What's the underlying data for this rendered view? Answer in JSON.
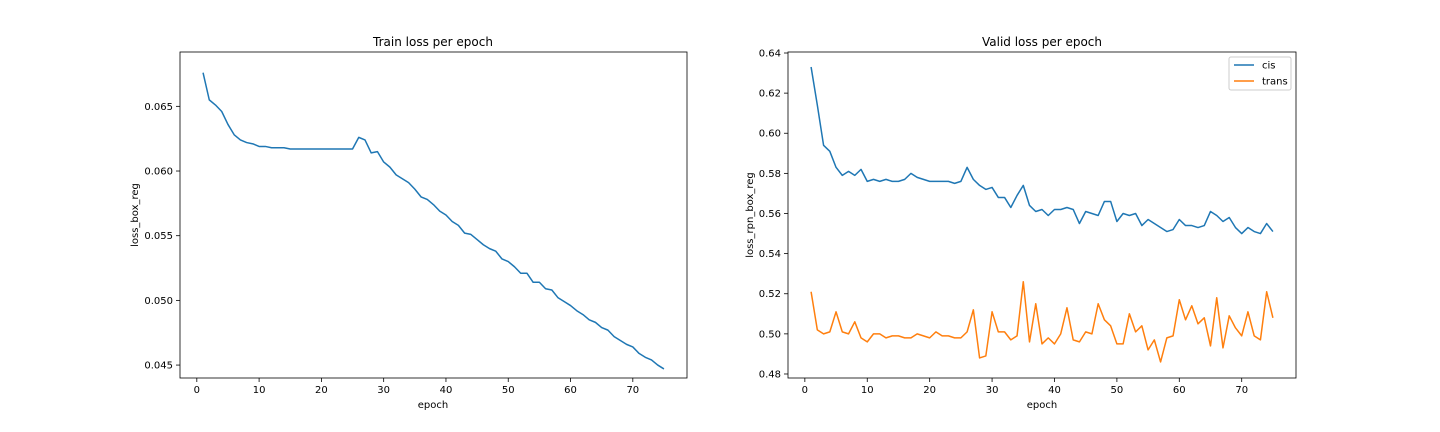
{
  "chart_data": [
    {
      "type": "line",
      "title": "Train loss per epoch",
      "xlabel": "epoch",
      "ylabel": "loss_box_reg",
      "xlim": [
        -2.7,
        78.7
      ],
      "ylim": [
        0.044,
        0.0692
      ],
      "xticks": [
        "0",
        "10",
        "20",
        "30",
        "40",
        "50",
        "60",
        "70"
      ],
      "yticks": [
        "0.045",
        "0.050",
        "0.055",
        "0.060",
        "0.065"
      ],
      "legend": false,
      "series": [
        {
          "color": "#1f77b4",
          "x": [
            1,
            2,
            3,
            4,
            5,
            6,
            7,
            8,
            9,
            10,
            11,
            12,
            13,
            14,
            15,
            16,
            17,
            18,
            19,
            20,
            21,
            22,
            23,
            24,
            25,
            26,
            27,
            28,
            29,
            30,
            31,
            32,
            33,
            34,
            35,
            36,
            37,
            38,
            39,
            40,
            41,
            42,
            43,
            44,
            45,
            46,
            47,
            48,
            49,
            50,
            51,
            52,
            53,
            54,
            55,
            56,
            57,
            58,
            59,
            60,
            61,
            62,
            63,
            64,
            65,
            66,
            67,
            68,
            69,
            70,
            71,
            72,
            73,
            74,
            75
          ],
          "values": [
            0.0676,
            0.0655,
            0.0651,
            0.0646,
            0.0636,
            0.0628,
            0.0624,
            0.0622,
            0.0621,
            0.0619,
            0.0619,
            0.0618,
            0.0618,
            0.0618,
            0.0617,
            0.0617,
            0.0617,
            0.0617,
            0.0617,
            0.0617,
            0.0617,
            0.0617,
            0.0617,
            0.0617,
            0.0617,
            0.0626,
            0.0624,
            0.0614,
            0.0615,
            0.0607,
            0.0603,
            0.0597,
            0.0594,
            0.0591,
            0.0586,
            0.058,
            0.0578,
            0.0574,
            0.0569,
            0.0566,
            0.0561,
            0.0558,
            0.0552,
            0.0551,
            0.0547,
            0.0543,
            0.054,
            0.0538,
            0.0532,
            0.053,
            0.0526,
            0.0521,
            0.0521,
            0.0514,
            0.0514,
            0.0509,
            0.0508,
            0.0502,
            0.0499,
            0.0496,
            0.0492,
            0.0489,
            0.0485,
            0.0483,
            0.0479,
            0.0477,
            0.0472,
            0.0469,
            0.0466,
            0.0464,
            0.0459,
            0.0456,
            0.0454,
            0.045,
            0.0447
          ]
        }
      ]
    },
    {
      "type": "line",
      "title": "Valid loss per epoch",
      "xlabel": "epoch",
      "ylabel": "loss_rpn_box_reg",
      "xlim": [
        -2.7,
        78.7
      ],
      "ylim": [
        0.478,
        0.6405
      ],
      "xticks": [
        "0",
        "10",
        "20",
        "30",
        "40",
        "50",
        "60",
        "70"
      ],
      "yticks": [
        "0.48",
        "0.50",
        "0.52",
        "0.54",
        "0.56",
        "0.58",
        "0.60",
        "0.62",
        "0.64"
      ],
      "legend": true,
      "legend_loc": "upper right",
      "series": [
        {
          "name": "cis",
          "color": "#1f77b4",
          "x": [
            1,
            2,
            3,
            4,
            5,
            6,
            7,
            8,
            9,
            10,
            11,
            12,
            13,
            14,
            15,
            16,
            17,
            18,
            19,
            20,
            21,
            22,
            23,
            24,
            25,
            26,
            27,
            28,
            29,
            30,
            31,
            32,
            33,
            34,
            35,
            36,
            37,
            38,
            39,
            40,
            41,
            42,
            43,
            44,
            45,
            46,
            47,
            48,
            49,
            50,
            51,
            52,
            53,
            54,
            55,
            56,
            57,
            58,
            59,
            60,
            61,
            62,
            63,
            64,
            65,
            66,
            67,
            68,
            69,
            70,
            71,
            72,
            73,
            74,
            75
          ],
          "values": [
            0.633,
            0.614,
            0.594,
            0.591,
            0.583,
            0.579,
            0.581,
            0.579,
            0.582,
            0.576,
            0.577,
            0.576,
            0.577,
            0.576,
            0.576,
            0.577,
            0.58,
            0.578,
            0.577,
            0.576,
            0.576,
            0.576,
            0.576,
            0.575,
            0.576,
            0.583,
            0.577,
            0.574,
            0.572,
            0.573,
            0.568,
            0.568,
            0.563,
            0.569,
            0.574,
            0.564,
            0.561,
            0.562,
            0.559,
            0.562,
            0.562,
            0.563,
            0.562,
            0.555,
            0.561,
            0.56,
            0.559,
            0.566,
            0.566,
            0.556,
            0.56,
            0.559,
            0.56,
            0.554,
            0.557,
            0.555,
            0.553,
            0.551,
            0.552,
            0.557,
            0.554,
            0.554,
            0.553,
            0.554,
            0.561,
            0.559,
            0.556,
            0.558,
            0.553,
            0.55,
            0.553,
            0.551,
            0.55,
            0.555,
            0.551
          ]
        },
        {
          "name": "trans",
          "color": "#ff7f0e",
          "x": [
            1,
            2,
            3,
            4,
            5,
            6,
            7,
            8,
            9,
            10,
            11,
            12,
            13,
            14,
            15,
            16,
            17,
            18,
            19,
            20,
            21,
            22,
            23,
            24,
            25,
            26,
            27,
            28,
            29,
            30,
            31,
            32,
            33,
            34,
            35,
            36,
            37,
            38,
            39,
            40,
            41,
            42,
            43,
            44,
            45,
            46,
            47,
            48,
            49,
            50,
            51,
            52,
            53,
            54,
            55,
            56,
            57,
            58,
            59,
            60,
            61,
            62,
            63,
            64,
            65,
            66,
            67,
            68,
            69,
            70,
            71,
            72,
            73,
            74,
            75
          ],
          "values": [
            0.521,
            0.502,
            0.5,
            0.501,
            0.511,
            0.501,
            0.5,
            0.506,
            0.498,
            0.496,
            0.5,
            0.5,
            0.498,
            0.499,
            0.499,
            0.498,
            0.498,
            0.5,
            0.499,
            0.498,
            0.501,
            0.499,
            0.499,
            0.498,
            0.498,
            0.501,
            0.512,
            0.488,
            0.489,
            0.511,
            0.501,
            0.501,
            0.497,
            0.499,
            0.526,
            0.496,
            0.515,
            0.495,
            0.498,
            0.495,
            0.5,
            0.513,
            0.497,
            0.496,
            0.501,
            0.5,
            0.515,
            0.507,
            0.504,
            0.495,
            0.495,
            0.51,
            0.501,
            0.504,
            0.492,
            0.497,
            0.486,
            0.498,
            0.499,
            0.517,
            0.507,
            0.514,
            0.505,
            0.508,
            0.494,
            0.518,
            0.493,
            0.509,
            0.503,
            0.499,
            0.511,
            0.499,
            0.497,
            0.521,
            0.508
          ]
        }
      ]
    }
  ]
}
